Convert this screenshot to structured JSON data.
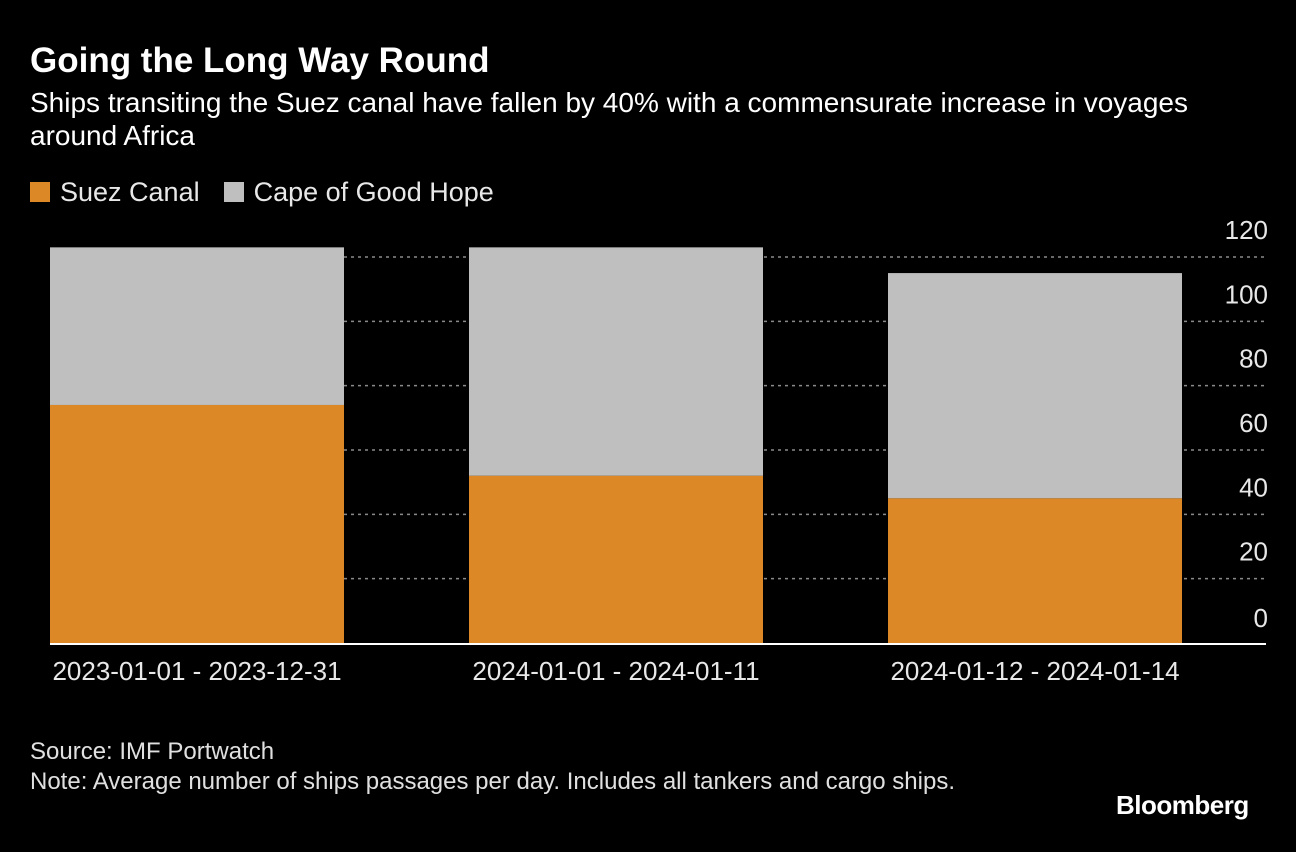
{
  "colors": {
    "suez": "#dc8826",
    "cape": "#bfbfbf",
    "background": "#000000",
    "grid": "#8a8a8a",
    "axis_text": "#e8e8e8"
  },
  "legend": {
    "items": [
      {
        "label": "Suez Canal",
        "color": "#dc8826"
      },
      {
        "label": "Cape of Good Hope",
        "color": "#bfbfbf"
      }
    ]
  },
  "footer": {
    "source": "Source: IMF Portwatch",
    "note": "Note: Average number of ships passages per day. Includes all tankers and cargo ships."
  },
  "brand": "Bloomberg",
  "chart_data": {
    "type": "bar",
    "stacked": true,
    "title": "Going the Long Way Round",
    "subtitle": "Ships transiting the Suez canal have fallen by 40% with a commensurate increase in voyages around Africa",
    "categories": [
      "2023-01-01 - 2023-12-31",
      "2024-01-01 - 2024-01-11",
      "2024-01-12 - 2024-01-14"
    ],
    "series": [
      {
        "name": "Suez Canal",
        "values": [
          74,
          52,
          45
        ]
      },
      {
        "name": "Cape of Good Hope",
        "values": [
          49,
          71,
          70
        ]
      }
    ],
    "ylim": [
      0,
      120
    ],
    "yticks": [
      0,
      20,
      40,
      60,
      80,
      100,
      120
    ],
    "y_axis_side": "right",
    "grid": true,
    "legend_position": "top-left",
    "xlabel": "",
    "ylabel": ""
  }
}
